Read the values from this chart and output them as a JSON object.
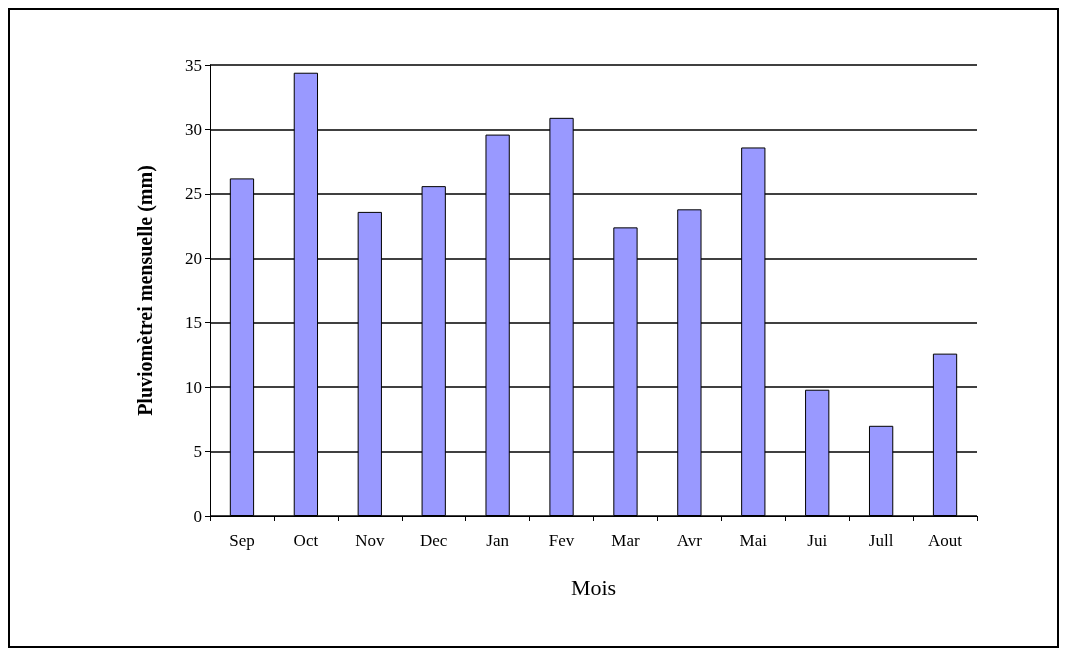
{
  "chart_data": {
    "type": "bar",
    "xlabel": "Mois",
    "ylabel": "Pluviomètrei mensuelle (mm)",
    "categories": [
      "Sep",
      "Oct",
      "Nov",
      "Dec",
      "Jan",
      "Fev",
      "Mar",
      "Avr",
      "Mai",
      "Jui",
      "Jull",
      "Aout"
    ],
    "values": [
      26.2,
      34.4,
      23.6,
      25.6,
      29.6,
      30.9,
      22.4,
      23.8,
      28.6,
      9.8,
      7.0,
      12.6
    ],
    "color": "#9999ff",
    "ylim": [
      0,
      35
    ],
    "yticks": [
      0,
      5,
      10,
      15,
      20,
      25,
      30,
      35
    ],
    "grid": "y"
  }
}
